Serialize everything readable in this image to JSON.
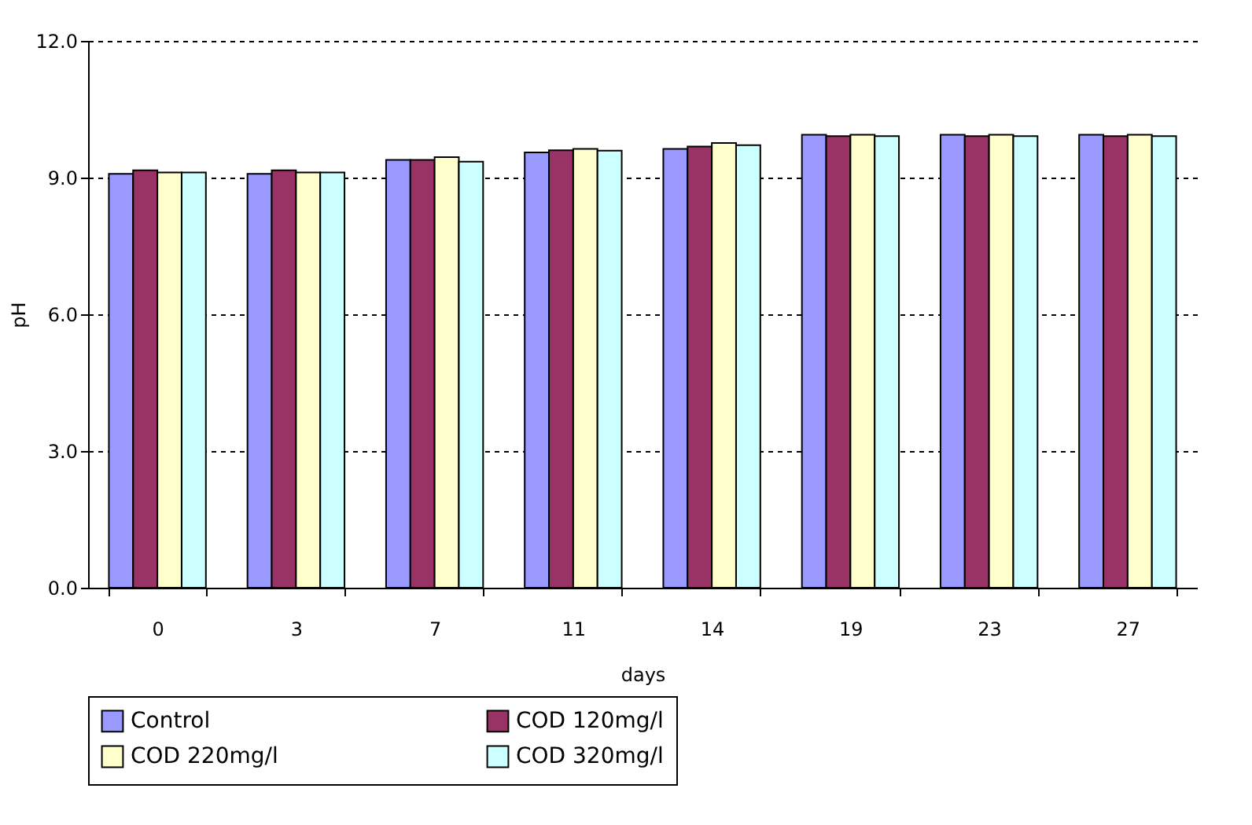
{
  "chart_data": {
    "type": "bar",
    "xlabel": "days",
    "ylabel": "pH",
    "categories": [
      "0",
      "3",
      "7",
      "11",
      "14",
      "19",
      "23",
      "27"
    ],
    "series": [
      {
        "name": "Control",
        "color": "#9999ff",
        "values": [
          9.08,
          9.08,
          9.39,
          9.55,
          9.63,
          9.94,
          9.94,
          9.94
        ]
      },
      {
        "name": "COD 120mg/l",
        "color": "#993366",
        "values": [
          9.16,
          9.16,
          9.39,
          9.6,
          9.68,
          9.91,
          9.91,
          9.91
        ]
      },
      {
        "name": "COD 220mg/l",
        "color": "#ffffcc",
        "values": [
          9.11,
          9.11,
          9.45,
          9.63,
          9.76,
          9.94,
          9.94,
          9.94
        ]
      },
      {
        "name": "COD 320mg/l",
        "color": "#ccffff",
        "values": [
          9.11,
          9.11,
          9.35,
          9.59,
          9.71,
          9.91,
          9.91,
          9.91
        ]
      }
    ],
    "ylim": [
      0,
      12
    ],
    "yticks": [
      {
        "value": 0,
        "label": "0.0"
      },
      {
        "value": 3,
        "label": "3.0"
      },
      {
        "value": 6,
        "label": "6.0"
      },
      {
        "value": 9,
        "label": "9.0"
      },
      {
        "value": 12,
        "label": "12.0"
      }
    ],
    "grid": "y",
    "legend": "bottom"
  }
}
